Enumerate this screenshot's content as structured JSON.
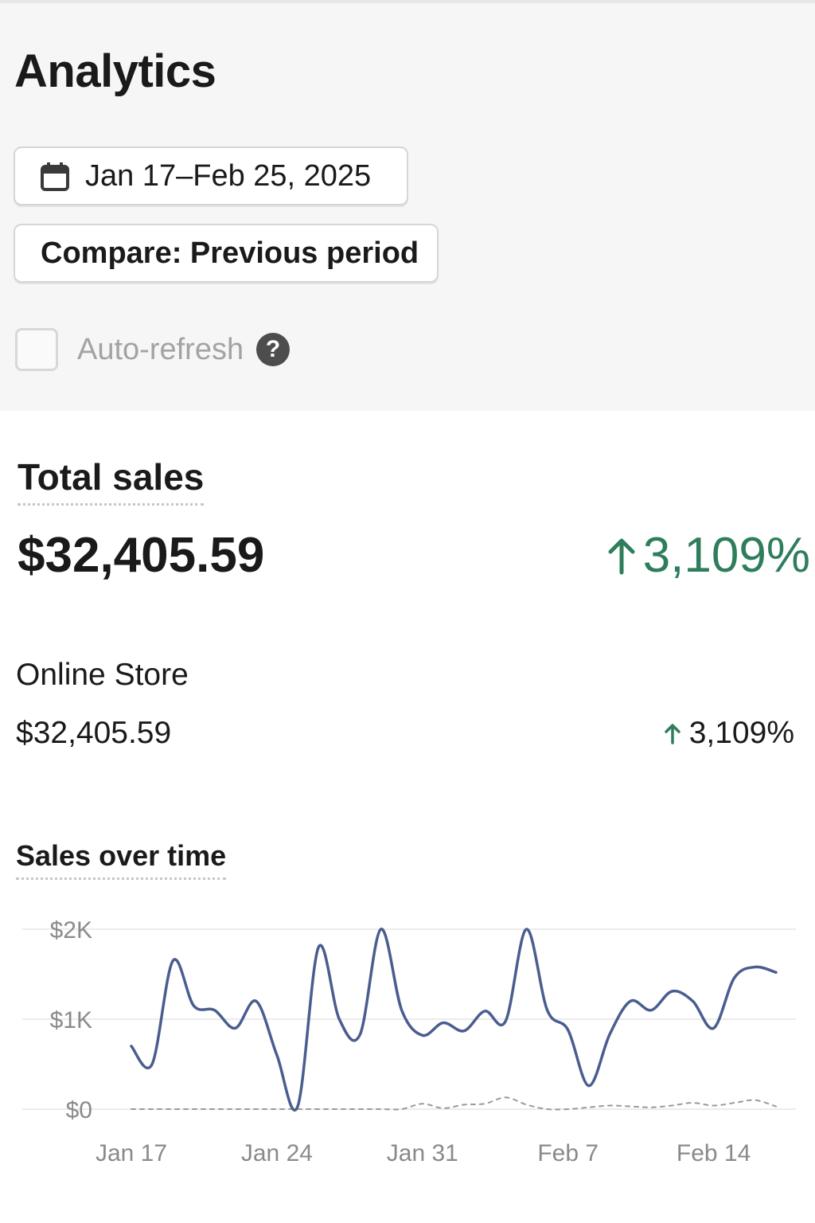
{
  "header": {
    "title": "Analytics"
  },
  "filters": {
    "date_range": "Jan 17–Feb 25, 2025",
    "compare": "Compare: Previous period",
    "auto_refresh_label": "Auto-refresh",
    "auto_refresh_checked": false,
    "help_symbol": "?"
  },
  "total_sales": {
    "title": "Total sales",
    "value": "$32,405.59",
    "change": "3,109%",
    "change_direction": "up",
    "change_color": "#2e7d5b"
  },
  "channels": [
    {
      "name": "Online Store",
      "value": "$32,405.59",
      "change": "3,109%",
      "change_direction": "up"
    }
  ],
  "sales_chart": {
    "title": "Sales over time"
  },
  "chart_data": {
    "type": "line",
    "title": "Sales over time",
    "yticks": [
      "$2K",
      "$1K",
      "$0"
    ],
    "ytick_values": [
      2000,
      1000,
      0
    ],
    "ylim": [
      0,
      2000
    ],
    "xticks": [
      "Jan 17",
      "Jan 24",
      "Jan 31",
      "Feb 7",
      "Feb 14"
    ],
    "xtick_index": [
      0,
      7,
      14,
      21,
      28
    ],
    "grid": true,
    "legend": "none",
    "series": [
      {
        "style": "solid",
        "color": "#4a5d8f",
        "values": [
          700,
          500,
          1650,
          1150,
          1100,
          900,
          1200,
          600,
          30,
          1800,
          1000,
          830,
          2000,
          1100,
          820,
          960,
          870,
          1090,
          980,
          2000,
          1100,
          880,
          260,
          830,
          1200,
          1100,
          1310,
          1200,
          900,
          1460,
          1580,
          1520
        ]
      },
      {
        "style": "dashed",
        "color": "#9a9a9a",
        "values": [
          0,
          0,
          0,
          0,
          0,
          0,
          0,
          0,
          0,
          0,
          0,
          0,
          0,
          0,
          60,
          10,
          50,
          60,
          130,
          50,
          0,
          0,
          20,
          40,
          30,
          20,
          40,
          70,
          40,
          70,
          100,
          30
        ]
      }
    ]
  }
}
